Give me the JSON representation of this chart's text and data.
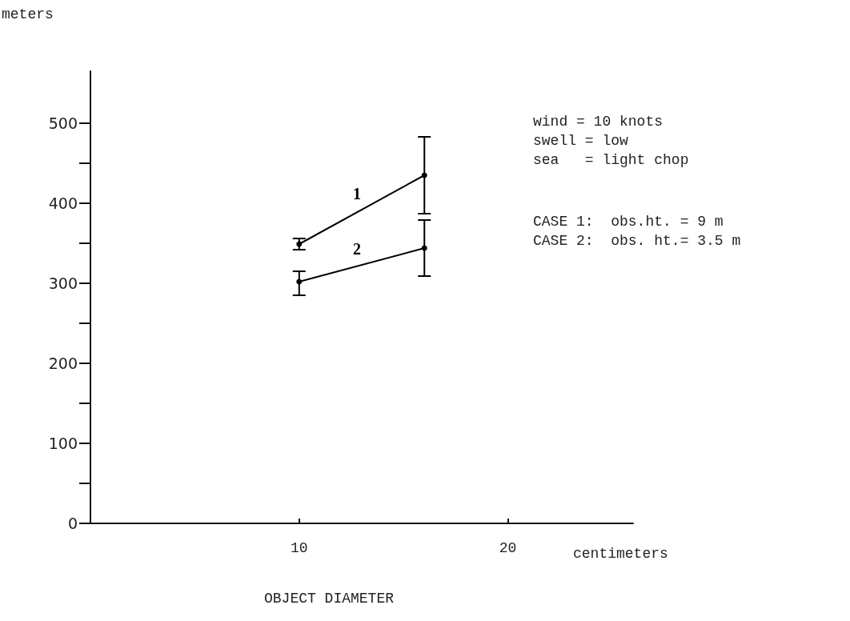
{
  "chart_data": {
    "type": "line",
    "xlabel": "OBJECT DIAMETER",
    "ylabel": "meters",
    "annotations": [
      "centimeters",
      "wind = 10 knots",
      "swell = low",
      "sea   = light chop",
      "CASE 1:  obs.ht. = 9 m",
      "CASE 2:  obs. ht.= 3.5 m"
    ],
    "x": [
      10,
      16
    ],
    "series": [
      {
        "name": "1",
        "color": "#000000",
        "values": [
          349,
          435
        ],
        "errors": [
          [
            342,
            356
          ],
          [
            387,
            483
          ]
        ]
      },
      {
        "name": "2",
        "color": "#000000",
        "values": [
          302,
          344
        ],
        "errors": [
          [
            285,
            315
          ],
          [
            309,
            379
          ]
        ]
      }
    ],
    "xlim": [
      0,
      26
    ],
    "xticks": [
      10,
      20
    ],
    "ylim": [
      0,
      565
    ],
    "yticks": [
      0,
      {
        "value": 50,
        "label": null
      },
      100,
      {
        "value": 150,
        "label": null
      },
      200,
      {
        "value": 250,
        "label": null
      },
      300,
      {
        "value": 350,
        "label": null
      },
      400,
      {
        "value": 450,
        "label": null
      },
      500
    ],
    "grid": false,
    "legend": false,
    "marker": "circle",
    "line_style": "solid"
  }
}
